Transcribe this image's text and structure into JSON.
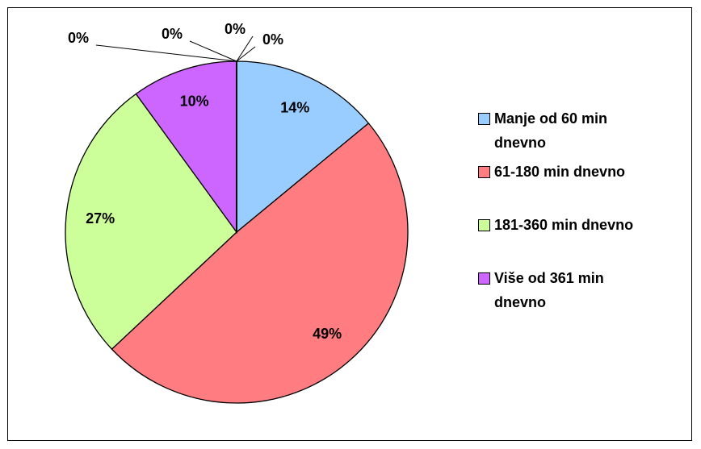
{
  "chart_data": {
    "type": "pie",
    "categories": [
      "Manje od 60 min dnevno",
      "61-180 min dnevno",
      "181-360 min dnevno",
      "Više od 361 min dnevno",
      null,
      null,
      null,
      null
    ],
    "values": [
      14,
      49,
      27,
      10,
      0,
      0,
      0,
      0
    ],
    "value_labels": [
      "14%",
      "49%",
      "27%",
      "10%",
      "0%",
      "0%",
      "0%",
      "0%"
    ],
    "colors": [
      "#99ccff",
      "#ff7c80",
      "#ccff99",
      "#cc66ff",
      "#9999ff",
      "#993366",
      "#ffffcc",
      "#ccffff"
    ],
    "legend": "right"
  }
}
